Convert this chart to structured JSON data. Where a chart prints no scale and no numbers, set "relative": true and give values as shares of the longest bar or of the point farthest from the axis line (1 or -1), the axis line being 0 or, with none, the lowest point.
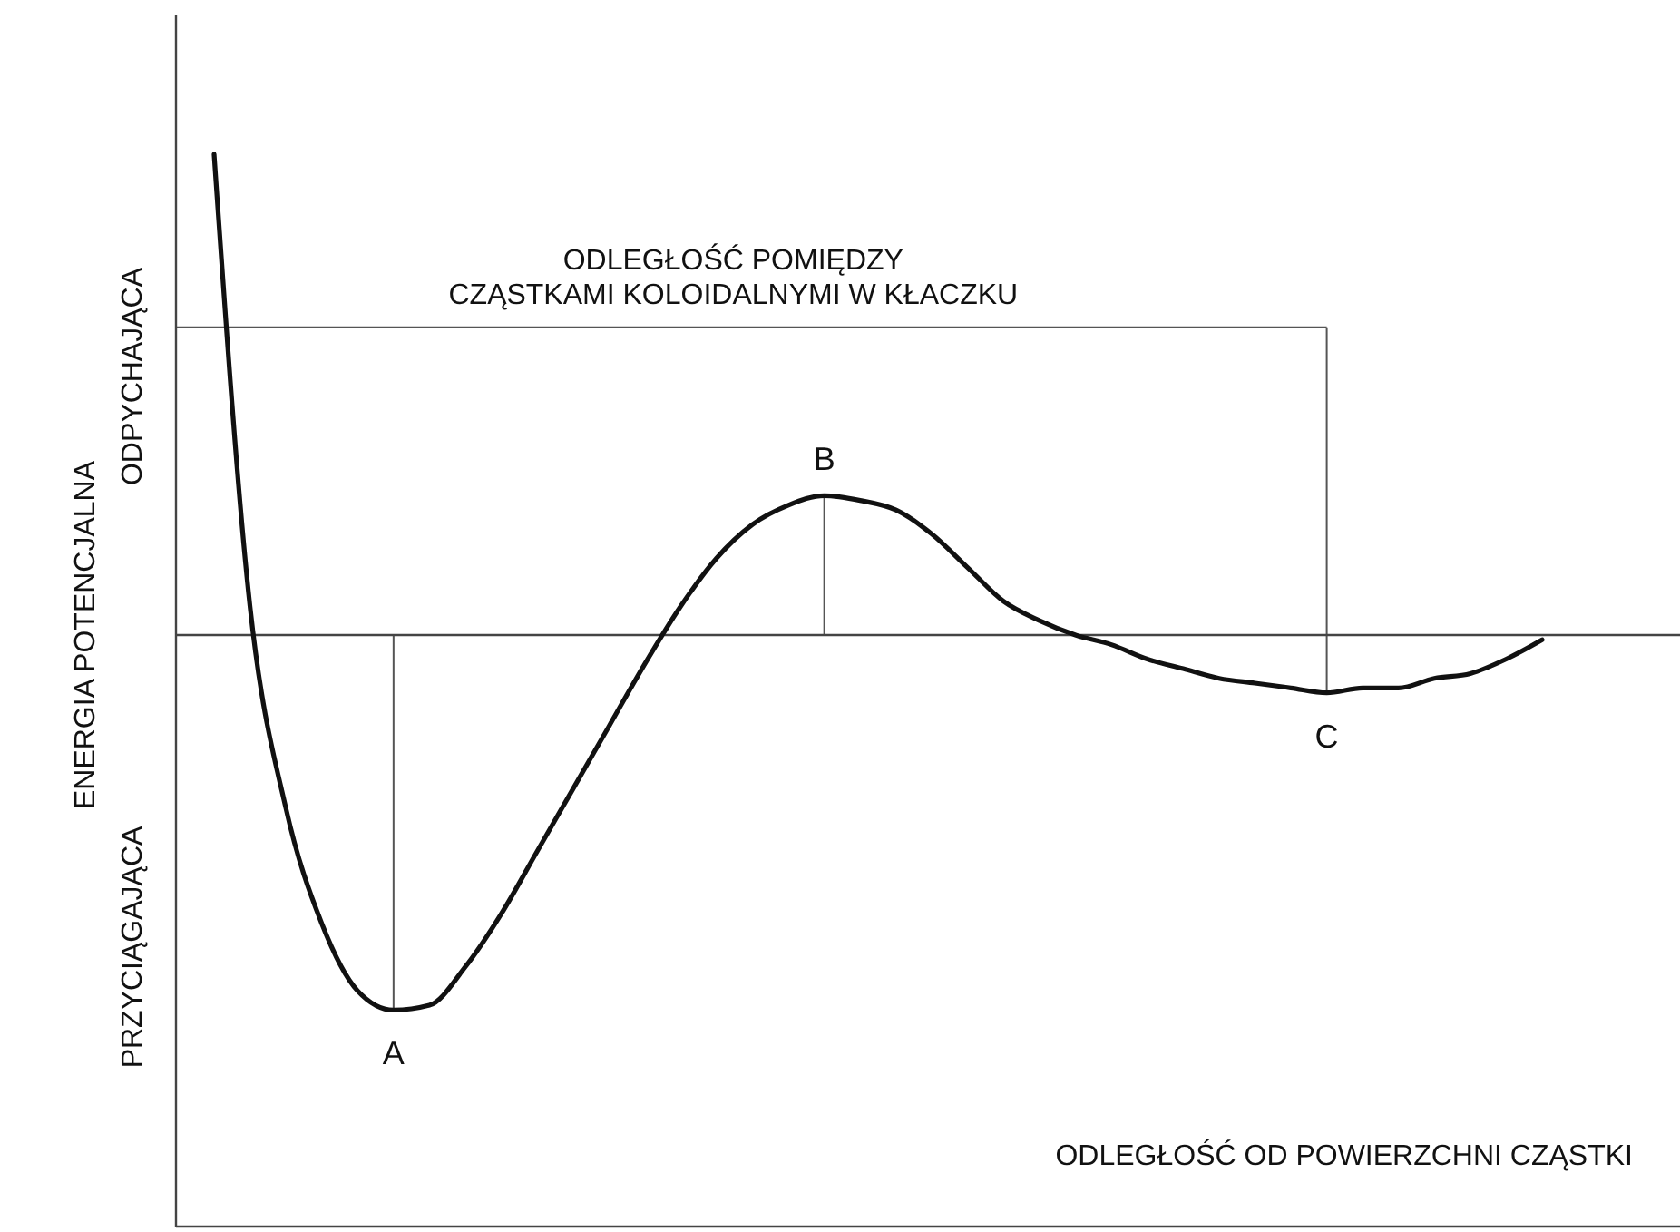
{
  "chart_data": {
    "type": "line",
    "relative": true,
    "ylabel": "ENERGIA POTENCJALNA",
    "xlabel": "ODLEGŁOŚĆ OD POWIERZCHNI CZĄSTKI",
    "categories": [
      null,
      null,
      null,
      null,
      null,
      null,
      null,
      null,
      null,
      null,
      null,
      null,
      null,
      null,
      null,
      null,
      null,
      null,
      null,
      null,
      null,
      null,
      null,
      null,
      null,
      null,
      null,
      null,
      null,
      null,
      null,
      null,
      null,
      null,
      null,
      null,
      null,
      null
    ],
    "series": [
      {
        "color": "#111111",
        "values": [
          1.0,
          0.06,
          -0.36,
          -0.6,
          -0.74,
          -0.78,
          -0.77,
          -0.69,
          -0.58,
          -0.45,
          -0.32,
          -0.19,
          -0.06,
          0.06,
          0.16,
          0.23,
          0.27,
          0.29,
          0.28,
          0.26,
          0.21,
          0.14,
          0.07,
          0.03,
          0.0,
          -0.02,
          -0.05,
          -0.07,
          -0.09,
          -0.1,
          -0.11,
          -0.12,
          -0.11,
          -0.11,
          -0.09,
          -0.08,
          -0.05,
          -0.01
        ]
      }
    ],
    "marker": "none",
    "line_style": "solid",
    "ref_lines": [
      {
        "axis": "y",
        "value": 0.64,
        "label": "ODLEGŁOŚĆ POMIĘDZY\nCZĄSTKAMI KOLOIDALNYMI W KŁACZKU",
        "color": "#555555"
      }
    ],
    "annotations": [
      "ODPYCHAJĄCA",
      "PRZYCIĄGAJĄCA",
      {
        "text": "A",
        "y": -0.78
      },
      {
        "text": "B",
        "y": 0.29
      },
      {
        "text": "C",
        "y": -0.12
      }
    ]
  }
}
